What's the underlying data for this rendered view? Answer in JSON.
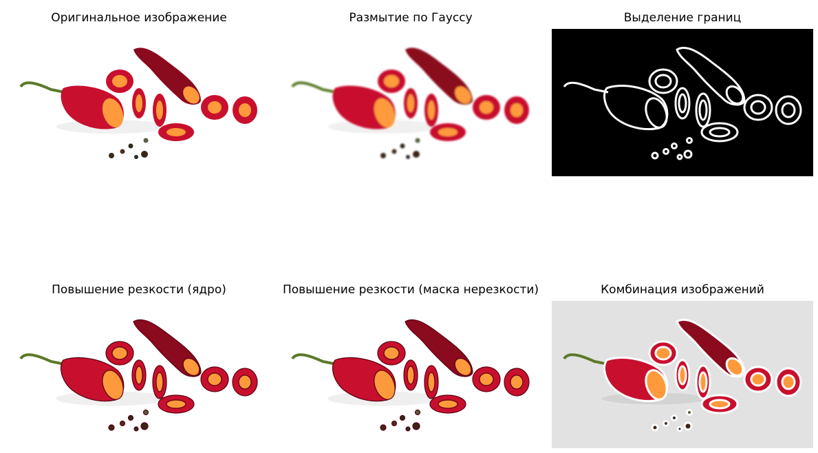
{
  "panels": [
    {
      "title": "Оригинальное изображение",
      "variant": "original"
    },
    {
      "title": "Размытие по Гауссу",
      "variant": "blur"
    },
    {
      "title": "Выделение границ",
      "variant": "edges"
    },
    {
      "title": "Повышение резкости (ядро)",
      "variant": "sharpen"
    },
    {
      "title": "Повышение резкости (маска нерезкости)",
      "variant": "unsharp"
    },
    {
      "title": "Комбинация изображений",
      "variant": "combined"
    }
  ],
  "colors": {
    "pepper_red": "#c8102e",
    "pepper_dark": "#8a0a1e",
    "seed_orange": "#ff9a3c",
    "stem_green": "#5b7a2a",
    "edge_bg": "#000000",
    "edge_fg": "#ffffff",
    "combined_bg": "#e2e2e2"
  }
}
